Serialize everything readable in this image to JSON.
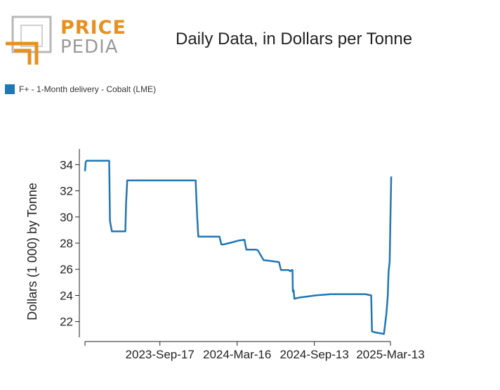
{
  "logo": {
    "top": "PRICE",
    "bottom": "PEDIA"
  },
  "chart_data": {
    "type": "line",
    "title": "Daily Data, in Dollars per Tonne",
    "xlabel": "",
    "ylabel": "Dollars (1 000) by Tonne",
    "ylim": [
      20.8,
      35.2
    ],
    "xlim_days": [
      0,
      795
    ],
    "yticks": [
      22,
      24,
      26,
      28,
      30,
      32,
      34
    ],
    "xticks": [
      {
        "label": "2023-Sep-17",
        "day": 195
      },
      {
        "label": "2024-Mar-16",
        "day": 396
      },
      {
        "label": "2024-Sep-13",
        "day": 597
      },
      {
        "label": "2025-Mar-13",
        "day": 795
      }
    ],
    "grid": false,
    "legend_position": "top-left",
    "series": [
      {
        "name": "F+ - 1-Month delivery - Cobalt (LME)",
        "color": "#1f77b4",
        "x": [
          0,
          2,
          4,
          30,
          55,
          63,
          65,
          70,
          75,
          85,
          95,
          100,
          105,
          107,
          110,
          115,
          140,
          160,
          180,
          200,
          220,
          240,
          265,
          285,
          288,
          290,
          292,
          295,
          300,
          325,
          345,
          350,
          355,
          360,
          375,
          400,
          415,
          420,
          425,
          430,
          442,
          445,
          450,
          465,
          480,
          505,
          510,
          515,
          530,
          534,
          538,
          540,
          541,
          543,
          545,
          560,
          575,
          600,
          620,
          640,
          670,
          700,
          730,
          745,
          747,
          752,
          760,
          770,
          778,
          784,
          786,
          788,
          790,
          793,
          795,
          797
        ],
        "y": [
          33.5,
          34.2,
          34.3,
          34.3,
          34.3,
          34.3,
          29.7,
          28.9,
          28.9,
          28.9,
          28.9,
          28.9,
          28.9,
          31.0,
          32.8,
          32.8,
          32.8,
          32.8,
          32.8,
          32.8,
          32.8,
          32.8,
          32.8,
          32.8,
          32.8,
          31.4,
          30.0,
          28.5,
          28.5,
          28.5,
          28.5,
          28.5,
          27.9,
          27.9,
          28.0,
          28.2,
          28.25,
          27.5,
          27.5,
          27.5,
          27.5,
          27.5,
          27.45,
          26.7,
          26.65,
          26.55,
          25.95,
          25.95,
          25.95,
          25.85,
          25.95,
          25.95,
          24.3,
          24.4,
          23.75,
          23.85,
          23.9,
          24.0,
          24.05,
          24.1,
          24.1,
          24.1,
          24.1,
          24.0,
          21.25,
          21.2,
          21.15,
          21.1,
          21.05,
          22.5,
          23.2,
          24.0,
          25.8,
          26.6,
          30.0,
          33.1
        ]
      }
    ]
  }
}
